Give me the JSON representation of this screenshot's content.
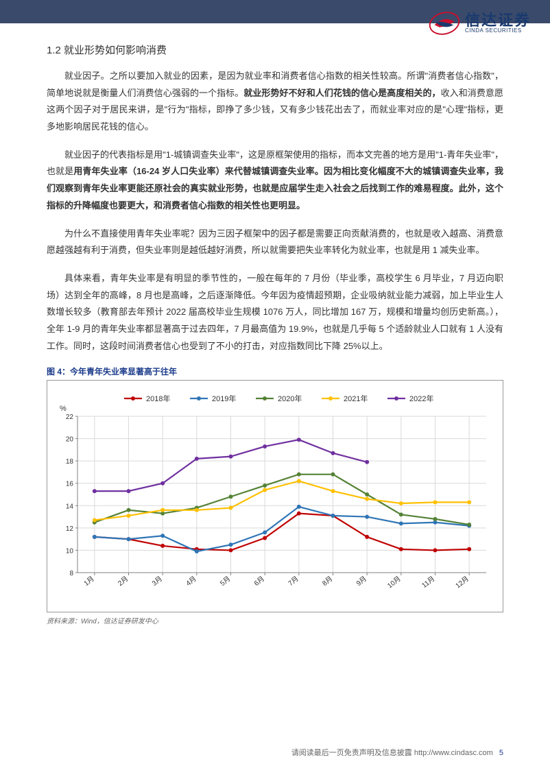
{
  "header": {
    "logo_cn": "信达证券",
    "logo_en": "CINDA SECURITIES",
    "bar_color": "#3a4a6b"
  },
  "section": {
    "title": "1.2 就业形势如何影响消费"
  },
  "paragraphs": {
    "p1a": "就业因子。之所以要加入就业的因素，是因为就业率和消费者信心指数的相关性较高。所谓\"消费者信心指数\"，简单地说就是衡量人们消费信心强弱的一个指标。",
    "p1b": "就业形势好不好和人们花钱的信心是高度相关的，",
    "p1c": "收入和消费意愿这两个因子对于居民来讲，是\"行为\"指标，即挣了多少钱，又有多少钱花出去了，而就业率对应的是\"心理\"指标，更多地影响居民花钱的信心。",
    "p2a": "就业因子的代表指标是用\"1-城镇调查失业率\"，这是原框架使用的指标，而本文完善的地方是用\"1-青年失业率\"，也就是",
    "p2b": "用青年失业率（16-24 岁人口失业率）来代替城镇调查失业率。因为相比变化幅度不大的城镇调查失业率，我们观察到青年失业率更能还原社会的真实就业形势，也就是应届学生走入社会之后找到工作的难易程度。此外，这个指标的升降幅度也要更大，和消费者信心指数的相关性也更明显。",
    "p3": "为什么不直接使用青年失业率呢？因为三因子框架中的因子都是需要正向贡献消费的，也就是收入越高、消费意愿越强越有利于消费，但失业率则是越低越好消费，所以就需要把失业率转化为就业率，也就是用 1 减失业率。",
    "p4": "具体来看，青年失业率是有明显的季节性的，一般在每年的 7 月份（毕业季，高校学生 6 月毕业，7 月迈向职场）达到全年的高峰，8 月也是高峰，之后逐渐降低。今年因为疫情超预期，企业吸纳就业能力减弱，加上毕业生人数增长较多（教育部去年预计 2022 届高校毕业生规模 1076 万人，同比增加 167 万，规模和增量均创历史新高。），全年 1-9 月的青年失业率都显著高于过去四年，7 月最高值为 19.9%，也就是几乎每 5 个适龄就业人口就有 1 人没有工作。同时，这段时间消费者信心也受到了不小的打击，对应指数同比下降 25%以上。"
  },
  "chart": {
    "title": "图 4：今年青年失业率显著高于往年",
    "source": "资料来源：Wind，信达证券研发中心",
    "type": "line",
    "y_label": "%",
    "y_min": 8,
    "y_max": 22,
    "y_ticks": [
      8,
      10,
      12,
      14,
      16,
      18,
      20,
      22
    ],
    "x_categories": [
      "1月",
      "2月",
      "3月",
      "4月",
      "5月",
      "6月",
      "7月",
      "8月",
      "9月",
      "10月",
      "11月",
      "12月"
    ],
    "grid_color": "#d9d9d9",
    "axis_color": "#808080",
    "background_color": "#ffffff",
    "line_width": 2.2,
    "marker_size": 3,
    "label_fontsize": 11,
    "tick_fontsize": 10,
    "series": [
      {
        "name": "2018年",
        "color": "#c00000",
        "values": [
          11.2,
          11.0,
          10.4,
          10.1,
          10.0,
          11.1,
          13.3,
          13.1,
          11.2,
          10.1,
          10.0,
          10.1
        ]
      },
      {
        "name": "2019年",
        "color": "#2e75b6",
        "values": [
          11.2,
          11.0,
          11.3,
          9.9,
          10.5,
          11.6,
          13.9,
          13.1,
          13.0,
          12.4,
          12.5,
          12.2
        ]
      },
      {
        "name": "2020年",
        "color": "#548235",
        "values": [
          12.5,
          13.6,
          13.3,
          13.8,
          14.8,
          15.8,
          16.8,
          16.8,
          15.0,
          13.2,
          12.8,
          12.3
        ]
      },
      {
        "name": "2021年",
        "color": "#ffc000",
        "values": [
          12.7,
          13.1,
          13.6,
          13.6,
          13.8,
          15.4,
          16.2,
          15.3,
          14.6,
          14.2,
          14.3,
          14.3
        ]
      },
      {
        "name": "2022年",
        "color": "#7030a0",
        "values": [
          15.3,
          15.3,
          16.0,
          18.2,
          18.4,
          19.3,
          19.9,
          18.7,
          17.9,
          null,
          null,
          null
        ]
      }
    ],
    "legend_position": "top"
  },
  "footer": {
    "text": "请阅读最后一页免责声明及信息披露",
    "url": "http://www.cindasc.com",
    "page": "5"
  }
}
